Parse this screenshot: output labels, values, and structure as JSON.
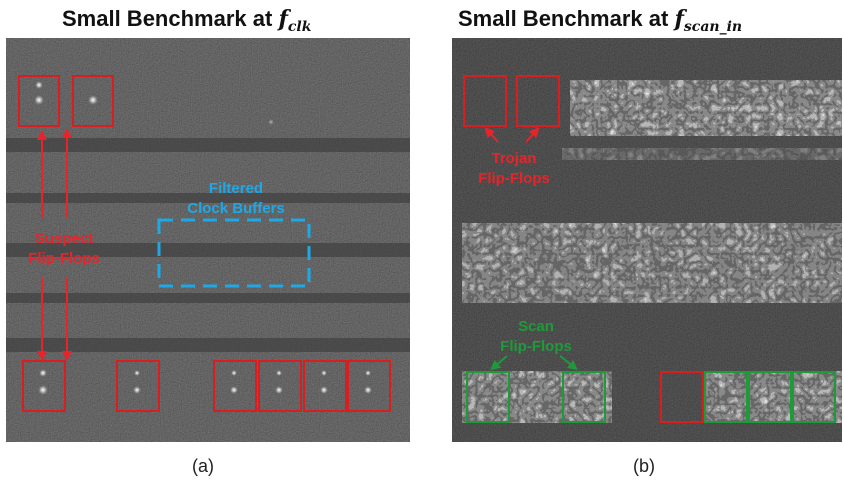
{
  "panel_a": {
    "title_prefix": "Small Benchmark at ",
    "title_symbol": "f",
    "title_subscript": "clk",
    "caption": "(a)",
    "labels": {
      "suspect_line1": "Suspect",
      "suspect_line2": "Flip-Flops",
      "filtered_line1": "Filtered",
      "filtered_line2": "Clock Buffers"
    }
  },
  "panel_b": {
    "title_prefix": "Small Benchmark at ",
    "title_symbol": "f",
    "title_subscript": "scan_in",
    "caption": "(b)",
    "labels": {
      "trojan_line1": "Trojan",
      "trojan_line2": "Flip-Flops",
      "scan_line1": "Scan",
      "scan_line2": "Flip-Flops"
    }
  },
  "colors": {
    "suspect_red": "#e8242a",
    "box_red": "#d81e1e",
    "filtered_blue": "#1fa8e6",
    "scan_green": "#1f9a3a",
    "image_bg": "#2b2b2b"
  }
}
